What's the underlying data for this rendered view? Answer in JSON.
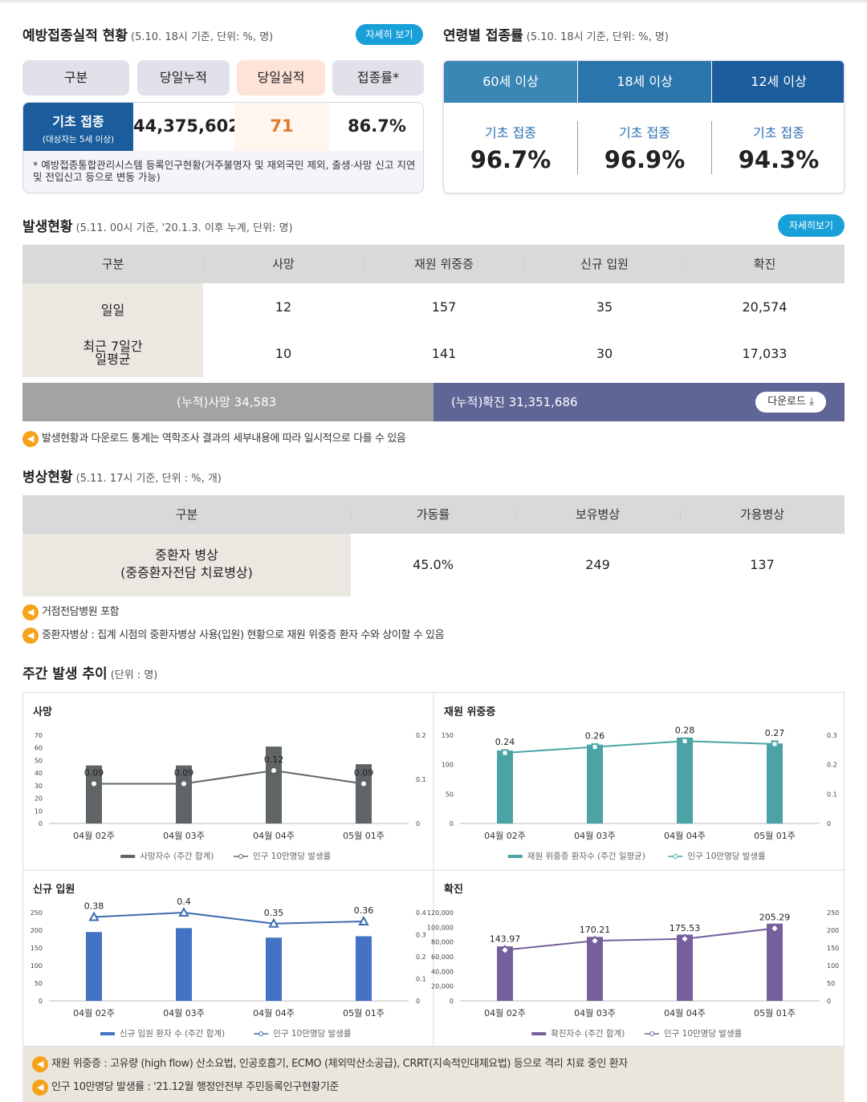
{
  "vaccination": {
    "title": "예방접종실적 현황",
    "subtitle": "(5.10. 18시 기준, 단위: %, 명)",
    "detail_button": "자세히 보기",
    "headers": [
      "구분",
      "당일누적",
      "당일실적",
      "접종률*"
    ],
    "row_label": "기초 접종",
    "row_sublabel": "(대상자는 5세 이상)",
    "cumulative": "44,375,602",
    "daily": "71",
    "rate": "86.7%",
    "note": "* 예방접종통합관리시스템 등록인구현황(거주불명자 및 재외국민 제외, 출생·사망 신고 지연 및 전입신고 등으로 변동 가능)"
  },
  "age_rate": {
    "title": "연령별 접종률",
    "subtitle": "(5.10. 18시 기준, 단위: %, 명)",
    "groups": [
      {
        "header": "60세 이상",
        "label": "기초 접종",
        "value": "96.7%",
        "color": "#3a86b4"
      },
      {
        "header": "18세 이상",
        "label": "기초 접종",
        "value": "96.9%",
        "color": "#2a75ab"
      },
      {
        "header": "12세 이상",
        "label": "기초 접종",
        "value": "94.3%",
        "color": "#1a5c9c"
      }
    ]
  },
  "occurrence": {
    "title": "발생현황",
    "subtitle": "(5.11. 00시 기준, '20.1.3. 이후 누계, 단위: 명)",
    "detail_button": "자세히보기",
    "headers": [
      "구분",
      "사망",
      "재원 위중증",
      "신규 입원",
      "확진"
    ],
    "rows": [
      {
        "label": "일일",
        "values": [
          "12",
          "157",
          "35",
          "20,574"
        ]
      },
      {
        "label": "최근 7일간\n일평균",
        "values": [
          "10",
          "141",
          "30",
          "17,033"
        ]
      }
    ],
    "cum_death": "(누적)사망   34,583",
    "cum_confirmed": "(누적)확진   31,351,686",
    "download": "다운로드",
    "note": "발생현황과 다운로드 통계는 역학조사 결과의 세부내용에 따라 일시적으로 다를 수 있음"
  },
  "beds": {
    "title": "병상현황",
    "subtitle": "(5.11. 17시 기준, 단위 : %, 개)",
    "headers": [
      "구분",
      "가동률",
      "보유병상",
      "가용병상"
    ],
    "row_label": "중환자 병상\n(중증환자전담 치료병상)",
    "values": [
      "45.0%",
      "249",
      "137"
    ],
    "notes": [
      "거점전담병원 포함",
      "중환자병상 : 집계 시점의 중환자병상 사용(입원) 현황으로 재원 위중증 환자 수와 상이할 수 있음"
    ]
  },
  "weekly": {
    "title": "주간 발생 추이",
    "subtitle": "(단위 : 명)",
    "notes": [
      "재원 위중증 : 고유량 (high flow) 산소요법, 인공호흡기, ECMO (체외막산소공급), CRRT(지속적인대체요법) 등으로 격리 치료 중인 환자",
      "인구 10만명당 발생률 : '21.12월 행정안전부 주민등록인구현황기준"
    ]
  },
  "chart_data": [
    {
      "type": "bar",
      "title": "사망",
      "categories": [
        "04월 02주",
        "04월 03주",
        "04월 04주",
        "05월 01주"
      ],
      "bar_color": "#5f6566",
      "line_color": "#5f6566",
      "series": [
        {
          "name": "사망자수 (주간 합계)",
          "values": [
            46,
            46,
            61,
            47
          ]
        },
        {
          "name": "인구 10만명당 발생률",
          "values": [
            0.09,
            0.09,
            0.12,
            0.09
          ]
        }
      ],
      "left_ticks": [
        "0",
        "10",
        "20",
        "30",
        "40",
        "50",
        "60",
        "70"
      ],
      "ylim": [
        0,
        70
      ],
      "right_ticks": [
        "0",
        "0.1",
        "0.2"
      ],
      "y2lim": [
        0,
        0.2
      ],
      "marker": "circle"
    },
    {
      "type": "bar",
      "title": "재원 위중증",
      "categories": [
        "04월 02주",
        "04월 03주",
        "04월 04주",
        "05월 01주"
      ],
      "bar_color": "#4ba3a6",
      "line_color": "#4ba3a6",
      "series": [
        {
          "name": "재원 위중증 환자수 (주간 일평균)",
          "values": [
            124,
            134,
            146,
            136
          ]
        },
        {
          "name": "인구 10만명당 발생률",
          "values": [
            0.24,
            0.26,
            0.28,
            0.27
          ]
        }
      ],
      "left_ticks": [
        "0",
        "50",
        "100",
        "150"
      ],
      "ylim": [
        0,
        150
      ],
      "right_ticks": [
        "0",
        "0.1",
        "0.2",
        "0.3"
      ],
      "y2lim": [
        0,
        0.3
      ],
      "marker": "square"
    },
    {
      "type": "bar",
      "title": "신규 입원",
      "categories": [
        "04월 02주",
        "04월 03주",
        "04월 04주",
        "05월 01주"
      ],
      "bar_color": "#4472c4",
      "line_color": "#3f6bb0",
      "series": [
        {
          "name": "신규 입원 환자 수 (주간 합계)",
          "values": [
            195,
            206,
            179,
            183
          ]
        },
        {
          "name": "인구 10만명당 발생률",
          "values": [
            0.38,
            0.4,
            0.35,
            0.36
          ]
        }
      ],
      "left_ticks": [
        "0",
        "50",
        "100",
        "150",
        "200",
        "250"
      ],
      "ylim": [
        0,
        250
      ],
      "right_ticks": [
        "0",
        "0.1",
        "0.2",
        "0.3",
        "0.4"
      ],
      "y2lim": [
        0,
        0.4
      ],
      "marker": "triangle"
    },
    {
      "type": "bar",
      "title": "확진",
      "categories": [
        "04월 02주",
        "04월 03주",
        "04월 04주",
        "05월 01주"
      ],
      "bar_color": "#76609c",
      "line_color": "#76609c",
      "series": [
        {
          "name": "확진자수 (주간 합계)",
          "values": [
            74000,
            87000,
            90000,
            105000
          ]
        },
        {
          "name": "인구 10만명당 발생률",
          "values": [
            143.97,
            170.21,
            175.53,
            205.29
          ]
        }
      ],
      "left_ticks": [
        "0",
        "20,000",
        "40,000",
        "60,000",
        "80,000",
        "100,000",
        "120,000"
      ],
      "ylim": [
        0,
        120000
      ],
      "right_ticks": [
        "0",
        "50",
        "100",
        "150",
        "200",
        "250"
      ],
      "y2lim": [
        0,
        250
      ],
      "marker": "diamond"
    }
  ]
}
